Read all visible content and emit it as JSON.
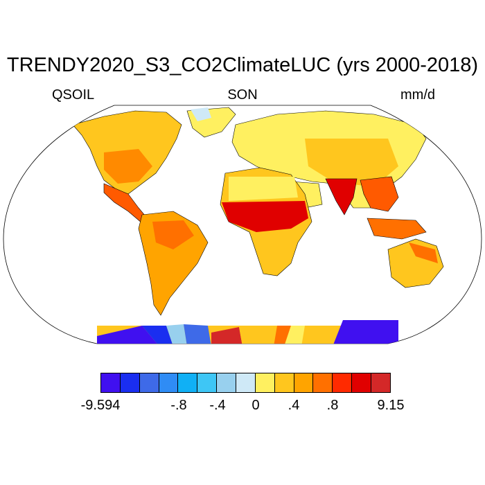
{
  "header": {
    "title": "TRENDY2020_S3_CO2ClimateLUC (yrs 2000-2018)",
    "variable": "QSOIL",
    "season": "SON",
    "units": "mm/d"
  },
  "colorbar": {
    "colors": [
      "#4010f0",
      "#1a2ef0",
      "#3e6ae8",
      "#2f8cf5",
      "#10b0f5",
      "#3ec6f5",
      "#98d0ee",
      "#cfe9f7",
      "#fff060",
      "#ffc61e",
      "#ffa400",
      "#ff7000",
      "#ff2a00",
      "#e00000",
      "#d42828"
    ],
    "labels": [
      "-9.594",
      "-.8",
      "-.4",
      "0",
      ".4",
      ".8",
      "9.15"
    ]
  }
}
